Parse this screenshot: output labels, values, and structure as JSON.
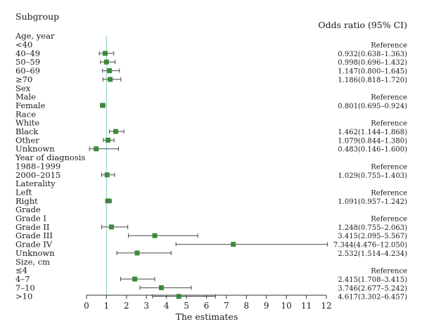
{
  "chart_data": {
    "type": "forest",
    "left_header": "Subgroup",
    "right_header": "Odds ratio (95% CI)",
    "xlabel": "The estimates",
    "xlim": [
      0,
      12
    ],
    "x_ticks": [
      0,
      1,
      2,
      3,
      4,
      5,
      6,
      7,
      8,
      9,
      10,
      11,
      12
    ],
    "reference_line": 1,
    "marker_color": "#3c8a3c",
    "reference_line_color": "#9fd6cf",
    "rows": [
      {
        "label": "Age, year",
        "heading": true
      },
      {
        "label": "<40",
        "ci_text": "Reference"
      },
      {
        "label": "40–49",
        "or": 0.932,
        "lo": 0.638,
        "hi": 1.363,
        "ci_text": "0.932(0.638–1.363)"
      },
      {
        "label": "50–59",
        "or": 0.998,
        "lo": 0.696,
        "hi": 1.432,
        "ci_text": "0.998(0.696–1.432)"
      },
      {
        "label": "60–69",
        "or": 1.147,
        "lo": 0.8,
        "hi": 1.645,
        "ci_text": "1.147(0.800–1.645)"
      },
      {
        "label": "≥70",
        "or": 1.186,
        "lo": 0.818,
        "hi": 1.72,
        "ci_text": "1.186(0.818–1.720)"
      },
      {
        "label": "Sex",
        "heading": true
      },
      {
        "label": "Male",
        "ci_text": "Reference"
      },
      {
        "label": "Female",
        "or": 0.801,
        "lo": 0.695,
        "hi": 0.924,
        "ci_text": "0.801(0.695–0.924)"
      },
      {
        "label": "Race",
        "heading": true
      },
      {
        "label": "White",
        "ci_text": "Reference"
      },
      {
        "label": "Black",
        "or": 1.462,
        "lo": 1.144,
        "hi": 1.868,
        "ci_text": "1.462(1.144–1.868)"
      },
      {
        "label": "Other",
        "or": 1.079,
        "lo": 0.844,
        "hi": 1.38,
        "ci_text": "1.079(0.844–1.380)"
      },
      {
        "label": "Unknown",
        "or": 0.483,
        "lo": 0.146,
        "hi": 1.6,
        "ci_text": "0.483(0.146–1.600)"
      },
      {
        "label": "Year of diagnosis",
        "heading": true
      },
      {
        "label": "1988–1999",
        "ci_text": "Reference"
      },
      {
        "label": "2000–2015",
        "or": 1.029,
        "lo": 0.755,
        "hi": 1.403,
        "ci_text": "1.029(0.755–1.403)"
      },
      {
        "label": "Laterality",
        "heading": true
      },
      {
        "label": "Left",
        "ci_text": "Reference"
      },
      {
        "label": "Right",
        "or": 1.091,
        "lo": 0.957,
        "hi": 1.242,
        "ci_text": "1.091(0.957–1.242)"
      },
      {
        "label": "Grade",
        "heading": true
      },
      {
        "label": "Grade I",
        "ci_text": "Reference"
      },
      {
        "label": "Grade II",
        "or": 1.248,
        "lo": 0.755,
        "hi": 2.063,
        "ci_text": "1.248(0.755–2.063)"
      },
      {
        "label": "Grade III",
        "or": 3.415,
        "lo": 2.095,
        "hi": 5.567,
        "ci_text": "3.415(2.095–5.567)"
      },
      {
        "label": "Grade IV",
        "or": 7.344,
        "lo": 4.476,
        "hi": 12.05,
        "ci_text": "7.344(4.476–12.050)"
      },
      {
        "label": "Unknown",
        "or": 2.532,
        "lo": 1.514,
        "hi": 4.234,
        "ci_text": "2.532(1.514–4.234)"
      },
      {
        "label": "Size, cm",
        "heading": true
      },
      {
        "label": "≤4",
        "ci_text": "Reference"
      },
      {
        "label": "4–7",
        "or": 2.415,
        "lo": 1.708,
        "hi": 3.415,
        "ci_text": "2.415(1.708–3.415)"
      },
      {
        "label": "7–10",
        "or": 3.746,
        "lo": 2.677,
        "hi": 5.242,
        "ci_text": "3.746(2.677–5.242)"
      },
      {
        "label": ">10",
        "or": 4.617,
        "lo": 3.302,
        "hi": 6.457,
        "ci_text": "4.617(3.302–6.457)"
      }
    ]
  }
}
